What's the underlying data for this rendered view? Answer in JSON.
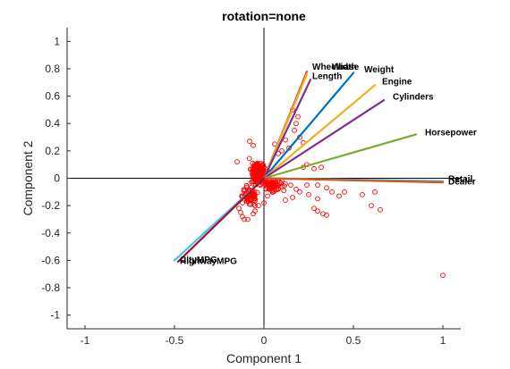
{
  "chart_data": {
    "type": "scatter",
    "title": "rotation=none",
    "xlabel": "Component 1",
    "ylabel": "Component 2",
    "xlim": [
      -1.1,
      1.1
    ],
    "ylim": [
      -1.1,
      1.1
    ],
    "xticks": [
      -1,
      -0.5,
      0,
      0.5,
      1
    ],
    "yticks": [
      -1,
      -0.8,
      -0.6,
      -0.4,
      -0.2,
      0,
      0.2,
      0.4,
      0.6,
      0.8,
      1
    ],
    "xtick_labels": [
      "-1",
      "-0.5",
      "0",
      "0.5",
      "1"
    ],
    "ytick_labels": [
      "-1",
      "-0.8",
      "-0.6",
      "-0.4",
      "-0.2",
      "0",
      "0.2",
      "0.4",
      "0.6",
      "0.8",
      "1"
    ],
    "grid": false,
    "vectors": [
      {
        "label": "Wheelbase",
        "x": 0.24,
        "y": 0.78,
        "color": "#D95319"
      },
      {
        "label": "Width",
        "x": 0.24,
        "y": 0.76,
        "color": "#EDB120"
      },
      {
        "label": "Length",
        "x": 0.26,
        "y": 0.72,
        "color": "#7E2F8E"
      },
      {
        "label": "Weight",
        "x": 0.5,
        "y": 0.77,
        "color": "#0072BD"
      },
      {
        "label": "Engine",
        "x": 0.62,
        "y": 0.68,
        "color": "#EDB120"
      },
      {
        "label": "Cylinders",
        "x": 0.67,
        "y": 0.57,
        "color": "#7E2F8E"
      },
      {
        "label": "Horsepower",
        "x": 0.85,
        "y": 0.32,
        "color": "#77AC30"
      },
      {
        "label": "Retail",
        "x": 1.0,
        "y": -0.02,
        "color": "#4DBEEE"
      },
      {
        "label": "Dealer",
        "x": 1.0,
        "y": -0.03,
        "color": "#D95319"
      },
      {
        "label": "CityMPG",
        "x": -0.5,
        "y": -0.6,
        "color": "#4DBEEE"
      },
      {
        "label": "HighwayMPG",
        "x": -0.48,
        "y": -0.61,
        "color": "#A2142F"
      }
    ],
    "label_overrides": {
      "Wheelbase": [
        0.27,
        0.82
      ],
      "Width": [
        0.38,
        0.82
      ],
      "Length": [
        0.27,
        0.75
      ],
      "Weight": [
        0.56,
        0.8
      ],
      "Engine": [
        0.66,
        0.71
      ],
      "Cylinders": [
        0.72,
        0.6
      ],
      "Horsepower": [
        0.9,
        0.34
      ],
      "Retail": [
        1.03,
        0.0
      ],
      "Dealer": [
        1.03,
        -0.02
      ],
      "CityMPG": [
        -0.47,
        -0.59
      ],
      "HighwayMPG": [
        -0.47,
        -0.6
      ]
    },
    "points_seed": 7,
    "points_count": 400,
    "points": [
      [
        1.0,
        -0.71
      ],
      [
        0.65,
        -0.23
      ],
      [
        0.6,
        -0.2
      ],
      [
        0.62,
        -0.1
      ],
      [
        0.55,
        -0.12
      ],
      [
        0.45,
        -0.1
      ],
      [
        0.42,
        -0.13
      ],
      [
        0.38,
        -0.1
      ],
      [
        0.35,
        -0.07
      ],
      [
        0.3,
        -0.05
      ],
      [
        0.28,
        -0.22
      ],
      [
        0.3,
        -0.24
      ],
      [
        0.33,
        -0.26
      ],
      [
        0.35,
        -0.27
      ],
      [
        0.3,
        -0.15
      ],
      [
        0.28,
        0.07
      ],
      [
        0.32,
        0.08
      ],
      [
        0.24,
        0.1
      ],
      [
        0.22,
        0.08
      ],
      [
        0.22,
        0.26
      ],
      [
        0.2,
        0.3
      ],
      [
        0.18,
        0.4
      ],
      [
        0.17,
        0.35
      ],
      [
        0.16,
        0.5
      ],
      [
        0.19,
        0.45
      ],
      [
        0.12,
        0.28
      ],
      [
        0.14,
        0.22
      ],
      [
        0.1,
        0.2
      ],
      [
        0.08,
        0.18
      ],
      [
        0.06,
        0.25
      ],
      [
        -0.08,
        0.27
      ],
      [
        -0.06,
        0.24
      ],
      [
        -0.15,
        0.12
      ],
      [
        -0.12,
        -0.18
      ],
      [
        -0.13,
        -0.25
      ],
      [
        -0.14,
        -0.22
      ],
      [
        -0.12,
        -0.28
      ],
      [
        -0.11,
        -0.3
      ],
      [
        -0.09,
        -0.3
      ],
      [
        -0.06,
        -0.26
      ],
      [
        -0.05,
        -0.24
      ],
      [
        -0.03,
        -0.2
      ],
      [
        0.0,
        -0.18
      ],
      [
        0.02,
        -0.13
      ],
      [
        0.05,
        -0.1
      ],
      [
        0.08,
        -0.08
      ],
      [
        0.1,
        -0.06
      ],
      [
        0.12,
        -0.04
      ],
      [
        0.15,
        -0.05
      ],
      [
        0.18,
        -0.08
      ],
      [
        0.2,
        -0.1
      ],
      [
        0.16,
        -0.14
      ],
      [
        0.12,
        -0.16
      ],
      [
        0.24,
        -0.05
      ],
      [
        0.25,
        -0.12
      ]
    ]
  }
}
